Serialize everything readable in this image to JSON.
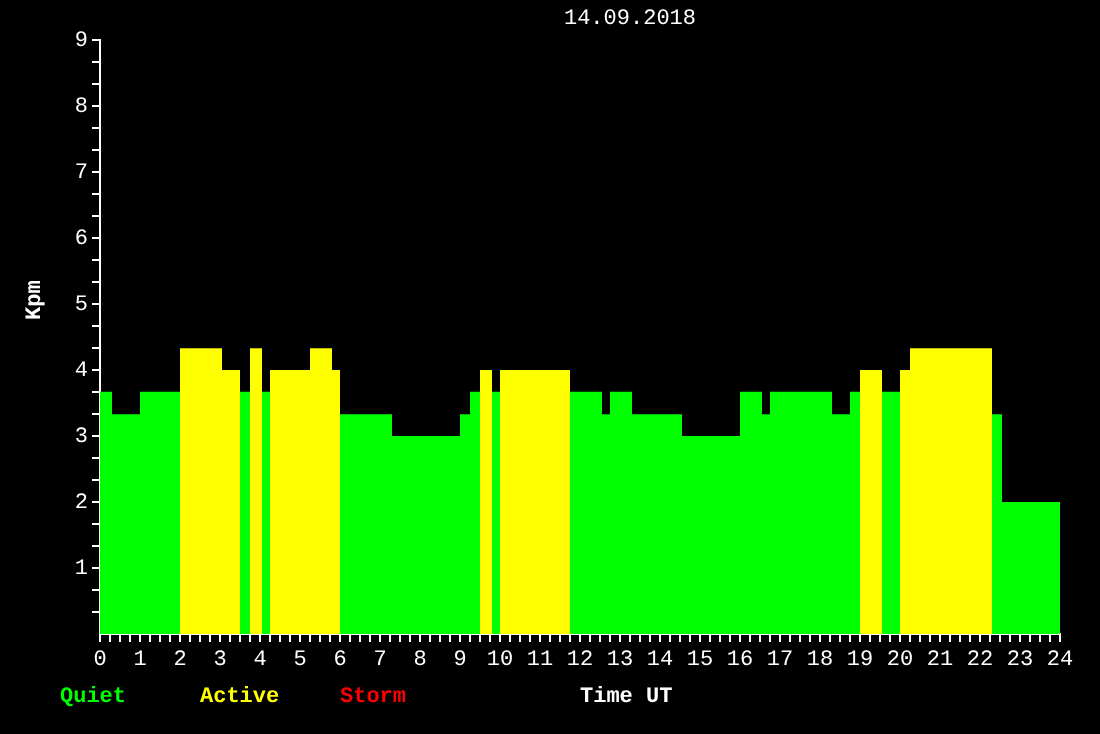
{
  "chart_data": {
    "type": "histogram",
    "title": "14.09.2018",
    "xlabel": "Time UT",
    "ylabel": "Kpm",
    "bins": [
      0,
      0.3,
      1.0,
      2.0,
      3.05,
      3.5,
      3.75,
      4.05,
      4.25,
      5.25,
      5.8,
      6.0,
      7.3,
      9.0,
      9.25,
      9.5,
      9.8,
      10.0,
      11.75,
      12.55,
      12.75,
      13.3,
      14.55,
      16.0,
      16.55,
      16.75,
      18.3,
      18.75,
      19.0,
      19.55,
      20.0,
      20.25,
      22.3,
      22.55,
      24
    ],
    "series": [
      {
        "name": "Quiet",
        "color": "#00ff00",
        "values": [
          3.67,
          3.33,
          3.67,
          null,
          null,
          3.67,
          null,
          3.67,
          null,
          null,
          null,
          3.33,
          3,
          3.33,
          3.67,
          null,
          3.67,
          null,
          3.67,
          3.33,
          3.67,
          3.33,
          3,
          3.67,
          3.33,
          3.67,
          3.33,
          3.67,
          null,
          3.67,
          null,
          null,
          3.33,
          2
        ]
      },
      {
        "name": "Active",
        "color": "#ffff00",
        "values": [
          null,
          null,
          null,
          4.33,
          4,
          null,
          4.33,
          null,
          4,
          4.33,
          4,
          null,
          null,
          null,
          null,
          4,
          null,
          4,
          null,
          null,
          null,
          null,
          null,
          null,
          null,
          null,
          null,
          null,
          4,
          null,
          4,
          4.33,
          null,
          null
        ]
      }
    ],
    "annotations": [
      "Storm"
    ],
    "xlim": [
      0,
      24
    ],
    "xticks": [
      0,
      {
        "value": 0.25,
        "label": null
      },
      {
        "value": 0.5,
        "label": null
      },
      {
        "value": 0.75,
        "label": null
      },
      1,
      {
        "value": 1.25,
        "label": null
      },
      {
        "value": 1.5,
        "label": null
      },
      {
        "value": 1.75,
        "label": null
      },
      2,
      {
        "value": 2.25,
        "label": null
      },
      {
        "value": 2.5,
        "label": null
      },
      {
        "value": 2.75,
        "label": null
      },
      3,
      {
        "value": 3.25,
        "label": null
      },
      {
        "value": 3.5,
        "label": null
      },
      {
        "value": 3.75,
        "label": null
      },
      4,
      {
        "value": 4.25,
        "label": null
      },
      {
        "value": 4.5,
        "label": null
      },
      {
        "value": 4.75,
        "label": null
      },
      5,
      {
        "value": 5.25,
        "label": null
      },
      {
        "value": 5.5,
        "label": null
      },
      {
        "value": 5.75,
        "label": null
      },
      6,
      {
        "value": 6.25,
        "label": null
      },
      {
        "value": 6.5,
        "label": null
      },
      {
        "value": 6.75,
        "label": null
      },
      7,
      {
        "value": 7.25,
        "label": null
      },
      {
        "value": 7.5,
        "label": null
      },
      {
        "value": 7.75,
        "label": null
      },
      8,
      {
        "value": 8.25,
        "label": null
      },
      {
        "value": 8.5,
        "label": null
      },
      {
        "value": 8.75,
        "label": null
      },
      9,
      {
        "value": 9.25,
        "label": null
      },
      {
        "value": 9.5,
        "label": null
      },
      {
        "value": 9.75,
        "label": null
      },
      10,
      {
        "value": 10.25,
        "label": null
      },
      {
        "value": 10.5,
        "label": null
      },
      {
        "value": 10.75,
        "label": null
      },
      11,
      {
        "value": 11.25,
        "label": null
      },
      {
        "value": 11.5,
        "label": null
      },
      {
        "value": 11.75,
        "label": null
      },
      12,
      {
        "value": 12.25,
        "label": null
      },
      {
        "value": 12.5,
        "label": null
      },
      {
        "value": 12.75,
        "label": null
      },
      13,
      {
        "value": 13.25,
        "label": null
      },
      {
        "value": 13.5,
        "label": null
      },
      {
        "value": 13.75,
        "label": null
      },
      14,
      {
        "value": 14.25,
        "label": null
      },
      {
        "value": 14.5,
        "label": null
      },
      {
        "value": 14.75,
        "label": null
      },
      15,
      {
        "value": 15.25,
        "label": null
      },
      {
        "value": 15.5,
        "label": null
      },
      {
        "value": 15.75,
        "label": null
      },
      16,
      {
        "value": 16.25,
        "label": null
      },
      {
        "value": 16.5,
        "label": null
      },
      {
        "value": 16.75,
        "label": null
      },
      17,
      {
        "value": 17.25,
        "label": null
      },
      {
        "value": 17.5,
        "label": null
      },
      {
        "value": 17.75,
        "label": null
      },
      18,
      {
        "value": 18.25,
        "label": null
      },
      {
        "value": 18.5,
        "label": null
      },
      {
        "value": 18.75,
        "label": null
      },
      19,
      {
        "value": 19.25,
        "label": null
      },
      {
        "value": 19.5,
        "label": null
      },
      {
        "value": 19.75,
        "label": null
      },
      20,
      {
        "value": 20.25,
        "label": null
      },
      {
        "value": 20.5,
        "label": null
      },
      {
        "value": 20.75,
        "label": null
      },
      21,
      {
        "value": 21.25,
        "label": null
      },
      {
        "value": 21.5,
        "label": null
      },
      {
        "value": 21.75,
        "label": null
      },
      22,
      {
        "value": 22.25,
        "label": null
      },
      {
        "value": 22.5,
        "label": null
      },
      {
        "value": 22.75,
        "label": null
      },
      23,
      {
        "value": 23.25,
        "label": null
      },
      {
        "value": 23.5,
        "label": null
      },
      {
        "value": 23.75,
        "label": null
      },
      24
    ],
    "ylim": [
      0,
      9
    ],
    "yticks": [
      {
        "value": 0.33,
        "label": null
      },
      {
        "value": 0.67,
        "label": null
      },
      1,
      {
        "value": 1.33,
        "label": null
      },
      {
        "value": 1.67,
        "label": null
      },
      2,
      {
        "value": 2.33,
        "label": null
      },
      {
        "value": 2.67,
        "label": null
      },
      3,
      {
        "value": 3.33,
        "label": null
      },
      {
        "value": 3.67,
        "label": null
      },
      4,
      {
        "value": 4.33,
        "label": null
      },
      {
        "value": 4.67,
        "label": null
      },
      5,
      {
        "value": 5.33,
        "label": null
      },
      {
        "value": 5.67,
        "label": null
      },
      6,
      {
        "value": 6.33,
        "label": null
      },
      {
        "value": 6.67,
        "label": null
      },
      7,
      {
        "value": 7.33,
        "label": null
      },
      {
        "value": 7.67,
        "label": null
      },
      8,
      {
        "value": 8.33,
        "label": null
      },
      {
        "value": 8.67,
        "label": null
      },
      9
    ],
    "grid": false,
    "legend": "bottom"
  }
}
